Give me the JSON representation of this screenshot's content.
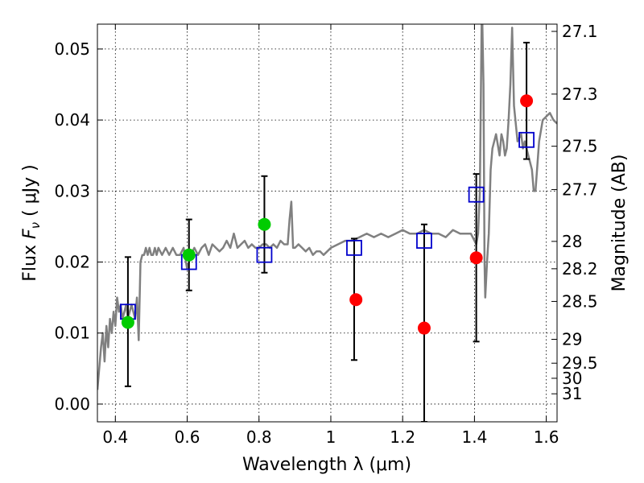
{
  "chart_data": {
    "type": "scatter",
    "xlabel": "Wavelength  λ (μm)",
    "ylabel": "Flux  F_ν  ( μJy )",
    "ylabel_parts": {
      "prefix": "Flux  ",
      "symbol": "F",
      "subscript": "ν",
      "suffix": "  ( μJy )"
    },
    "y2label": "Magnitude (AB)",
    "xlim": [
      0.35,
      1.63
    ],
    "ylim": [
      -0.0025,
      0.0535
    ],
    "grid": true,
    "x_ticks": [
      0.4,
      0.6,
      0.8,
      1.0,
      1.2,
      1.4,
      1.6
    ],
    "x_tick_labels": [
      "0.4",
      "0.6",
      "0.8",
      "1",
      "1.2",
      "1.4",
      "1.6"
    ],
    "y_ticks": [
      0.0,
      0.01,
      0.02,
      0.03,
      0.04,
      0.05
    ],
    "y_tick_labels": [
      "0.00",
      "0.01",
      "0.02",
      "0.03",
      "0.04",
      "0.05"
    ],
    "mag_ticks": [
      27.1,
      27.3,
      27.5,
      27.7,
      28,
      28.2,
      28.5,
      29,
      29.5,
      30,
      31
    ],
    "mag_tick_labels": [
      "27.1",
      "27.3",
      "27.5",
      "27.7",
      "28",
      "28.2",
      "28.5",
      "29",
      "29.5",
      "30",
      "31"
    ],
    "colors": {
      "model": "#808080",
      "squares": "#0000cc",
      "red": "#ff0000",
      "green": "#00cc00",
      "errorbar": "#000000"
    },
    "model_spectrum": {
      "x": [
        0.35,
        0.36,
        0.365,
        0.37,
        0.375,
        0.38,
        0.385,
        0.39,
        0.395,
        0.4,
        0.405,
        0.41,
        0.415,
        0.42,
        0.425,
        0.43,
        0.435,
        0.44,
        0.445,
        0.45,
        0.455,
        0.46,
        0.465,
        0.47,
        0.475,
        0.48,
        0.485,
        0.49,
        0.495,
        0.5,
        0.505,
        0.51,
        0.515,
        0.52,
        0.53,
        0.54,
        0.55,
        0.56,
        0.57,
        0.58,
        0.59,
        0.6,
        0.61,
        0.62,
        0.63,
        0.64,
        0.65,
        0.66,
        0.67,
        0.68,
        0.69,
        0.7,
        0.71,
        0.72,
        0.73,
        0.74,
        0.75,
        0.76,
        0.77,
        0.78,
        0.79,
        0.8,
        0.81,
        0.82,
        0.83,
        0.84,
        0.85,
        0.86,
        0.87,
        0.88,
        0.885,
        0.89,
        0.895,
        0.9,
        0.91,
        0.92,
        0.93,
        0.94,
        0.95,
        0.96,
        0.97,
        0.98,
        0.99,
        1.0,
        1.02,
        1.04,
        1.06,
        1.08,
        1.1,
        1.12,
        1.14,
        1.16,
        1.18,
        1.2,
        1.22,
        1.24,
        1.26,
        1.28,
        1.3,
        1.32,
        1.34,
        1.36,
        1.38,
        1.39,
        1.4,
        1.405,
        1.41,
        1.415,
        1.42,
        1.422,
        1.425,
        1.428,
        1.43,
        1.435,
        1.44,
        1.445,
        1.45,
        1.46,
        1.47,
        1.475,
        1.48,
        1.485,
        1.49,
        1.495,
        1.5,
        1.505,
        1.51,
        1.52,
        1.53,
        1.535,
        1.54,
        1.55,
        1.56,
        1.565,
        1.57,
        1.58,
        1.59,
        1.6,
        1.61,
        1.62,
        1.63
      ],
      "y": [
        0.002,
        0.008,
        0.01,
        0.006,
        0.011,
        0.008,
        0.012,
        0.01,
        0.013,
        0.011,
        0.015,
        0.013,
        0.014,
        0.012,
        0.013,
        0.014,
        0.012,
        0.013,
        0.014,
        0.013,
        0.012,
        0.015,
        0.009,
        0.02,
        0.021,
        0.021,
        0.022,
        0.021,
        0.022,
        0.021,
        0.021,
        0.022,
        0.021,
        0.022,
        0.021,
        0.022,
        0.021,
        0.022,
        0.021,
        0.021,
        0.022,
        0.019,
        0.021,
        0.022,
        0.021,
        0.022,
        0.0225,
        0.021,
        0.0225,
        0.022,
        0.0215,
        0.022,
        0.023,
        0.022,
        0.024,
        0.022,
        0.0225,
        0.023,
        0.022,
        0.0225,
        0.022,
        0.022,
        0.0225,
        0.0225,
        0.022,
        0.0225,
        0.022,
        0.023,
        0.0225,
        0.0225,
        0.026,
        0.0285,
        0.022,
        0.022,
        0.0225,
        0.022,
        0.0215,
        0.022,
        0.021,
        0.0215,
        0.0215,
        0.021,
        0.0215,
        0.022,
        0.0225,
        0.023,
        0.023,
        0.0235,
        0.024,
        0.0235,
        0.024,
        0.0235,
        0.024,
        0.0245,
        0.024,
        0.024,
        0.0245,
        0.024,
        0.024,
        0.0235,
        0.0245,
        0.024,
        0.024,
        0.024,
        0.023,
        0.0225,
        0.024,
        0.03,
        0.0535,
        0.0535,
        0.045,
        0.02,
        0.015,
        0.02,
        0.024,
        0.033,
        0.036,
        0.038,
        0.035,
        0.038,
        0.037,
        0.035,
        0.036,
        0.04,
        0.045,
        0.053,
        0.042,
        0.037,
        0.038,
        0.036,
        0.037,
        0.035,
        0.033,
        0.03,
        0.03,
        0.037,
        0.04,
        0.0405,
        0.041,
        0.04,
        0.0395
      ]
    },
    "squares": {
      "x": [
        0.435,
        0.605,
        0.815,
        1.065,
        1.26,
        1.405,
        1.545
      ],
      "y": [
        0.013,
        0.02,
        0.021,
        0.022,
        0.023,
        0.0295,
        0.0372
      ]
    },
    "green_points": {
      "x": [
        0.435,
        0.605,
        0.815
      ],
      "y": [
        0.0115,
        0.021,
        0.0253
      ]
    },
    "red_points": {
      "x": [
        1.07,
        1.26,
        1.405,
        1.545
      ],
      "y": [
        0.0147,
        0.0107,
        0.0206,
        0.0427
      ]
    },
    "errorbars": [
      {
        "x": 0.435,
        "low": 0.0025,
        "high": 0.0207
      },
      {
        "x": 0.605,
        "low": 0.016,
        "high": 0.026
      },
      {
        "x": 0.815,
        "low": 0.0185,
        "high": 0.0321
      },
      {
        "x": 1.065,
        "low": 0.0062,
        "high": 0.0233
      },
      {
        "x": 1.26,
        "low": -0.0025,
        "high": 0.0253
      },
      {
        "x": 1.405,
        "low": 0.0088,
        "high": 0.0324
      },
      {
        "x": 1.545,
        "low": 0.0345,
        "high": 0.0509
      }
    ]
  }
}
